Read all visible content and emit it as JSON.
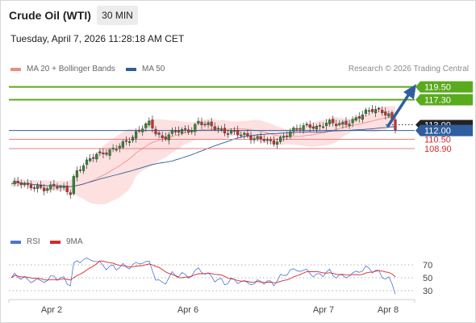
{
  "header": {
    "title": "Crude Oil (WTI)",
    "timeframe": "30 MIN",
    "datetime": "Tuesday, April 7, 2026 11:28:18 AM CET"
  },
  "legend": {
    "ma20": "MA 20 + Bollinger Bands",
    "ma50": "MA 50",
    "credit": "Research © 2026 Trading Central",
    "rsi": "RSI",
    "rsi_ma": "9MA"
  },
  "colors": {
    "ma20": "#f08a84",
    "ma50": "#2f5e9e",
    "bollinger_fill": "#fde0e0",
    "resistance": "#5aaa1e",
    "support": "#e87c84",
    "pivot": "#2f5e9e",
    "price_tag": "#222222",
    "arrow": "#2f5e9e",
    "candle_up": "#2e8b2e",
    "candle_down": "#d42a2a",
    "rsi": "#4a74d8",
    "rsi_ma": "#d42a2a"
  },
  "chart_data": [
    {
      "type": "candlestick",
      "title": "Crude Oil (WTI)",
      "xlabel": "",
      "ylabel": "",
      "x_ticks": [
        "Apr 2",
        "Apr 6",
        "Apr 7",
        "Apr 8"
      ],
      "levels": [
        {
          "label": "119.50",
          "value": 119.5,
          "kind": "resistance"
        },
        {
          "label": "117.30",
          "value": 117.3,
          "kind": "resistance"
        },
        {
          "label": "113.00",
          "value": 113.0,
          "kind": "last-price"
        },
        {
          "label": "112.00",
          "value": 112.0,
          "kind": "pivot"
        },
        {
          "label": "110.50",
          "value": 110.5,
          "kind": "support"
        },
        {
          "label": "108.90",
          "value": 108.9,
          "kind": "support"
        }
      ],
      "ylim": [
        96,
        121
      ],
      "grid": false,
      "legend_position": "top-left"
    },
    {
      "type": "line",
      "title": "",
      "series": [
        {
          "name": "RSI",
          "role": "rsi"
        },
        {
          "name": "9MA",
          "role": "rsi_ma"
        }
      ],
      "y_ticks": [
        70,
        50,
        30
      ],
      "ylim": [
        20,
        80
      ],
      "grid": false,
      "legend_position": "top-left"
    }
  ]
}
